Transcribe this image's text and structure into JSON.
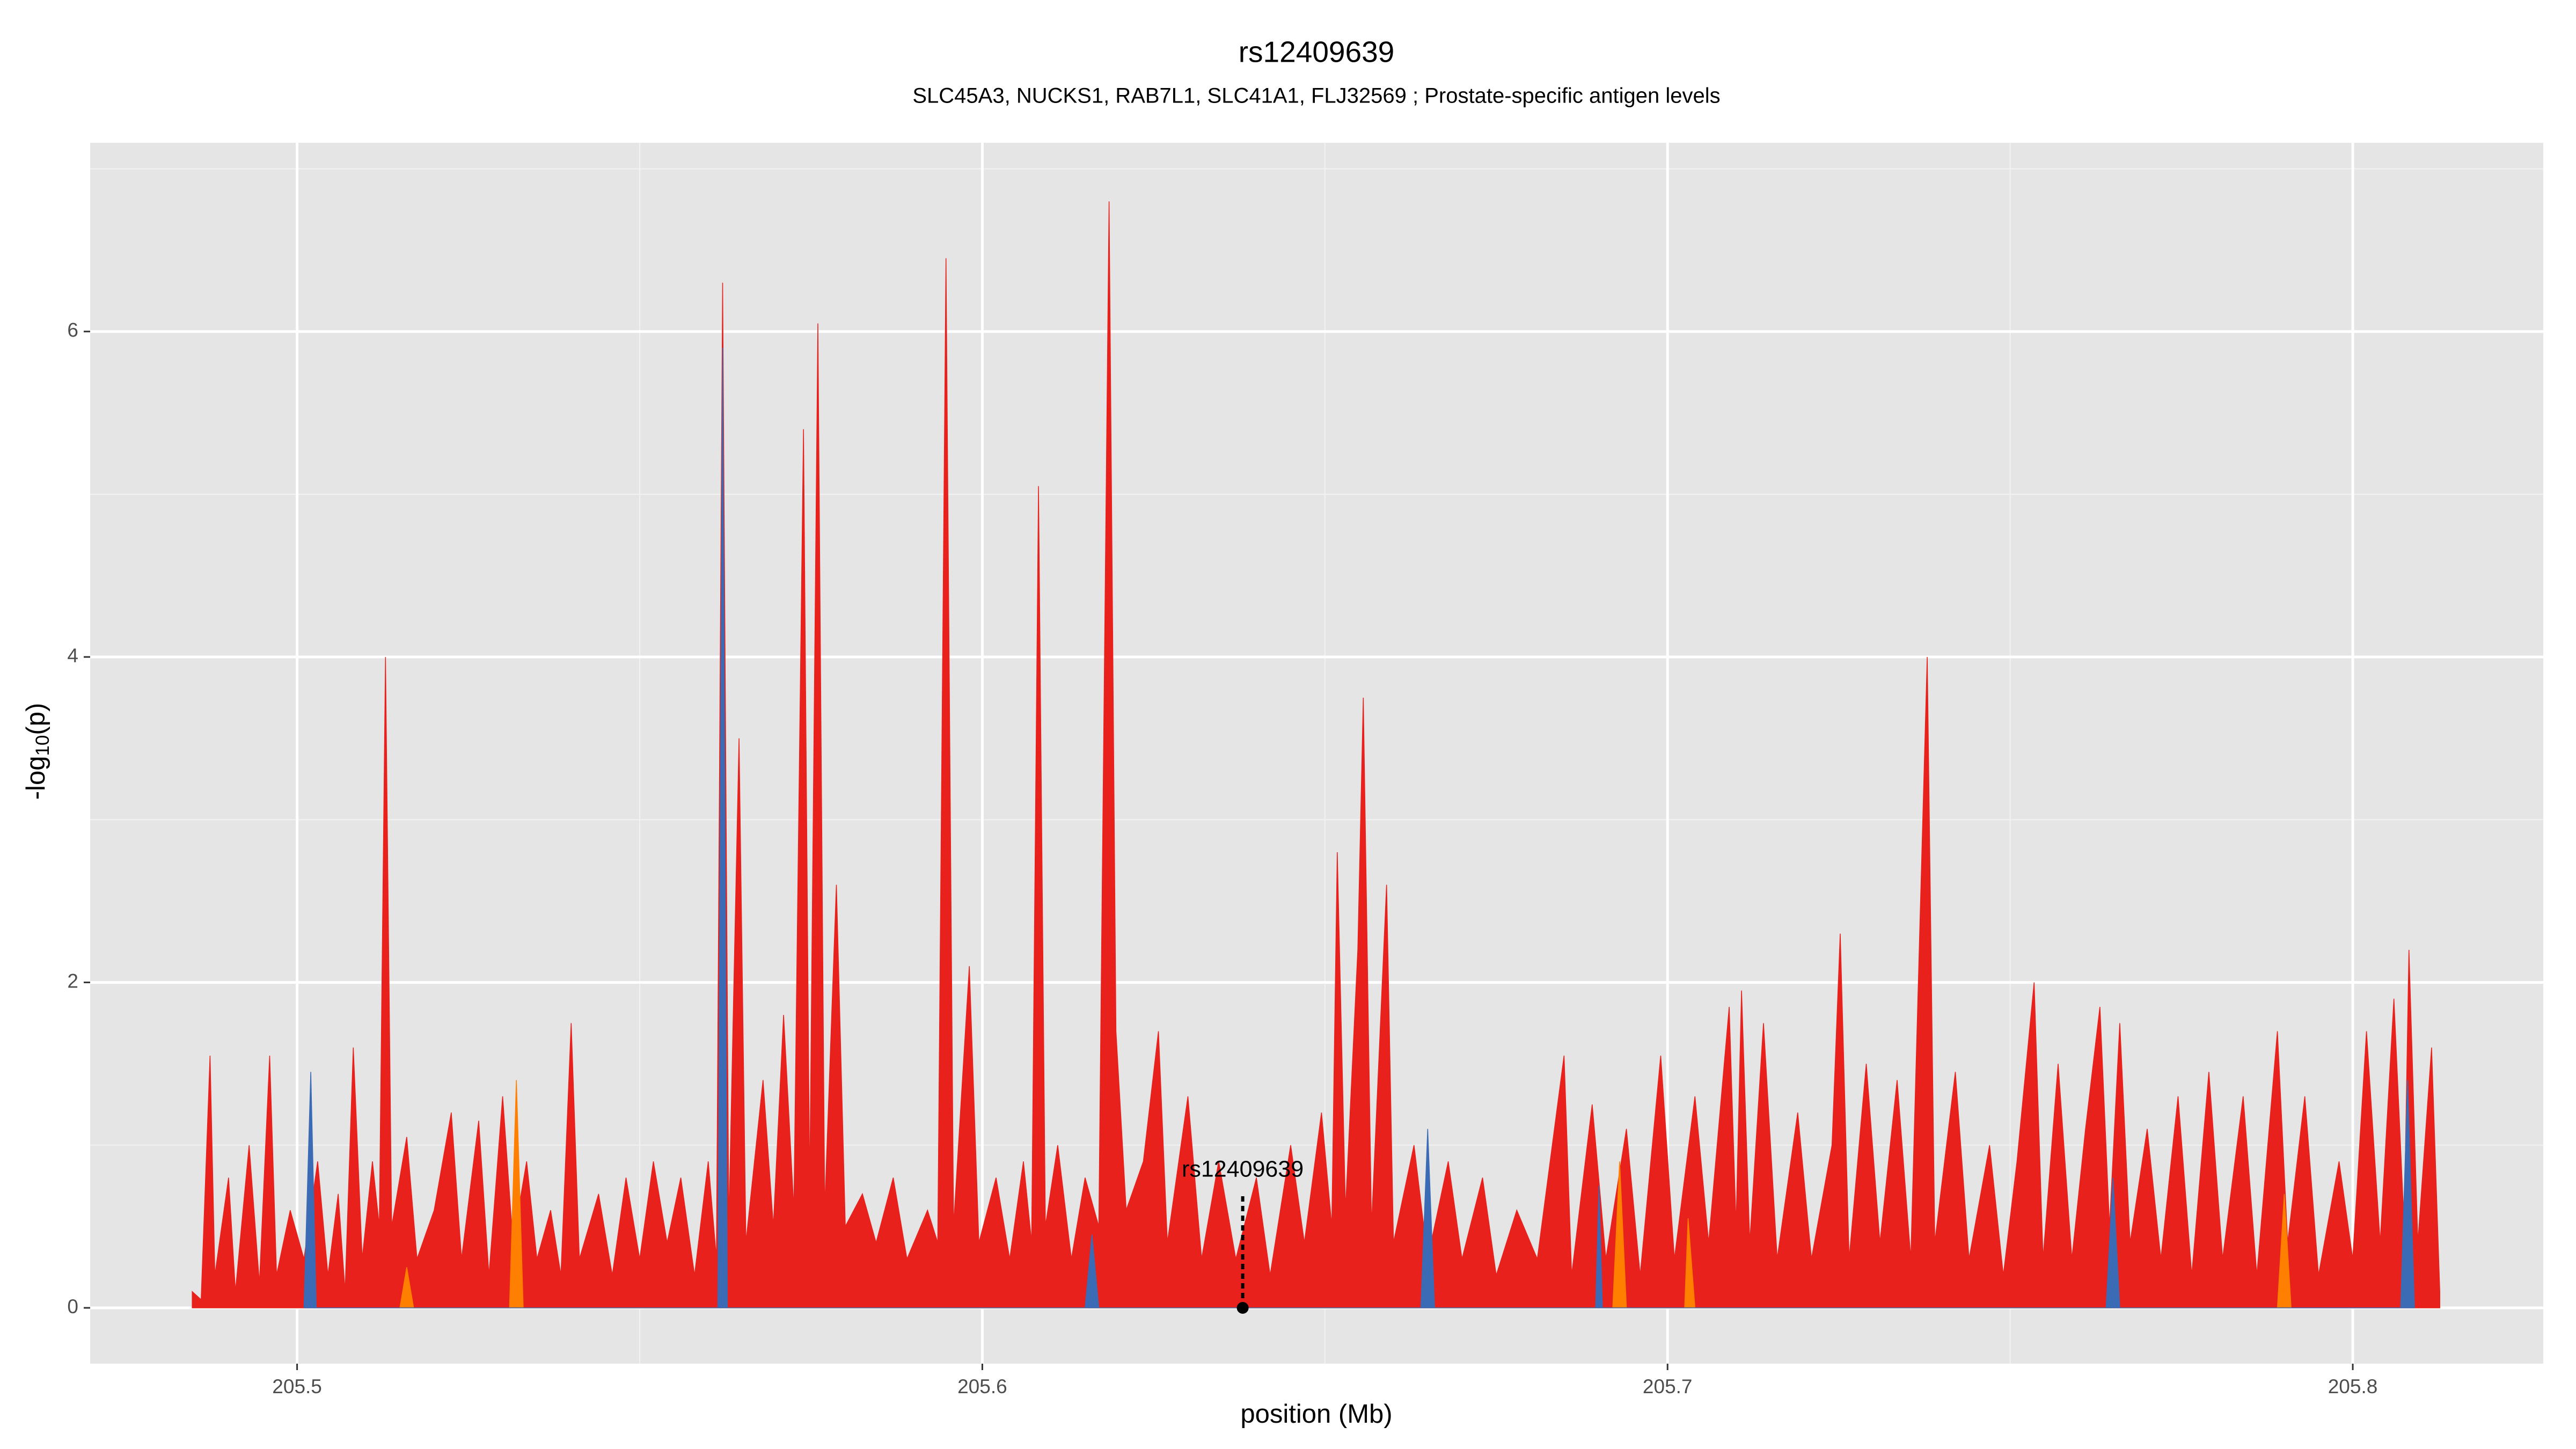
{
  "chart_data": {
    "type": "area",
    "title": "rs12409639",
    "subtitle": "SLC45A3, NUCKS1, RAB7L1, SLC41A1, FLJ32569 ; Prostate-specific antigen levels",
    "x_label": "position (Mb)",
    "y_label": "-log",
    "y_label_sub": "10",
    "y_label_tail": "(p)",
    "xlim": [
      205.4698,
      205.8278
    ],
    "ylim": [
      -0.343,
      7.16
    ],
    "xticks": [
      205.5,
      205.6,
      205.7,
      205.8
    ],
    "yticks": [
      0,
      2,
      4,
      6
    ],
    "grid": true,
    "background": "#e5e5e5",
    "annotation": {
      "text": "rs12409639",
      "x": 205.638,
      "y": 0
    },
    "series": [
      {
        "color": "#e8211d",
        "x": [
          205.4847,
          205.486,
          205.4873,
          205.488,
          205.49,
          205.491,
          205.493,
          205.4945,
          205.496,
          205.497,
          205.499,
          205.501,
          205.503,
          205.5045,
          205.506,
          205.507,
          205.5082,
          205.5095,
          205.511,
          205.512,
          205.5129,
          205.5138,
          205.516,
          205.5175,
          205.52,
          205.5225,
          205.524,
          205.5265,
          205.528,
          205.53,
          205.5315,
          205.5335,
          205.535,
          205.537,
          205.5385,
          205.54,
          205.5412,
          205.544,
          205.546,
          205.548,
          205.55,
          205.552,
          205.554,
          205.556,
          205.558,
          205.56,
          205.5612,
          205.5621,
          205.563,
          205.5645,
          205.5655,
          205.568,
          205.5695,
          205.571,
          205.5725,
          205.5739,
          205.5748,
          205.576,
          205.577,
          205.5787,
          205.58,
          205.5825,
          205.5845,
          205.587,
          205.589,
          205.592,
          205.5935,
          205.5947,
          205.5958,
          205.5981,
          205.5995,
          205.602,
          205.604,
          205.606,
          205.6072,
          205.6082,
          205.6092,
          205.611,
          205.613,
          205.615,
          205.617,
          205.6185,
          205.6195,
          205.621,
          205.6235,
          205.6257,
          205.627,
          205.63,
          205.632,
          205.6345,
          205.637,
          205.64,
          205.642,
          205.645,
          205.647,
          205.6495,
          205.651,
          205.6518,
          205.653,
          205.6548,
          205.6556,
          205.6568,
          205.659,
          205.66,
          205.663,
          205.665,
          205.668,
          205.67,
          205.673,
          205.675,
          205.678,
          205.681,
          205.6849,
          205.686,
          205.689,
          205.691,
          205.694,
          205.696,
          205.699,
          205.701,
          205.704,
          205.706,
          205.709,
          205.71,
          205.7108,
          205.712,
          205.714,
          205.716,
          205.719,
          205.721,
          205.724,
          205.7252,
          205.7265,
          205.729,
          205.731,
          205.7335,
          205.7355,
          205.7379,
          205.739,
          205.742,
          205.744,
          205.747,
          205.749,
          205.751,
          205.7535,
          205.7548,
          205.757,
          205.759,
          205.761,
          205.7631,
          205.7645,
          205.766,
          205.7675,
          205.77,
          205.772,
          205.7745,
          205.7765,
          205.779,
          205.781,
          205.784,
          205.786,
          205.789,
          205.7905,
          205.793,
          205.795,
          205.798,
          205.8,
          205.802,
          205.804,
          205.806,
          205.8075,
          205.8082,
          205.8095,
          205.8115,
          205.8127
        ],
        "values": [
          0.1,
          0.05,
          1.55,
          0.2,
          0.8,
          0.1,
          1.0,
          0.15,
          1.55,
          0.2,
          0.6,
          0.3,
          0.9,
          0.2,
          0.7,
          0.1,
          1.6,
          0.3,
          0.9,
          0.5,
          4.0,
          0.5,
          1.05,
          0.3,
          0.6,
          1.2,
          0.3,
          1.15,
          0.2,
          1.3,
          0.4,
          0.9,
          0.3,
          0.6,
          0.2,
          1.75,
          0.3,
          0.7,
          0.2,
          0.8,
          0.3,
          0.9,
          0.4,
          0.8,
          0.2,
          0.9,
          0.3,
          6.3,
          0.5,
          3.5,
          0.4,
          1.4,
          0.5,
          1.8,
          0.6,
          5.4,
          0.7,
          6.05,
          0.6,
          2.6,
          0.5,
          0.7,
          0.4,
          0.8,
          0.3,
          0.6,
          0.4,
          6.45,
          0.5,
          2.1,
          0.4,
          0.8,
          0.3,
          0.9,
          0.4,
          5.05,
          0.5,
          1.0,
          0.3,
          0.8,
          0.5,
          6.8,
          1.7,
          0.6,
          0.9,
          1.7,
          0.4,
          1.3,
          0.3,
          0.9,
          0.3,
          0.8,
          0.2,
          1.0,
          0.4,
          1.2,
          0.5,
          2.8,
          0.6,
          2.2,
          3.75,
          0.5,
          2.6,
          0.4,
          1.0,
          0.3,
          0.9,
          0.3,
          0.8,
          0.2,
          0.6,
          0.3,
          1.55,
          0.2,
          1.25,
          0.3,
          1.1,
          0.2,
          1.55,
          0.3,
          1.3,
          0.4,
          1.85,
          0.5,
          1.95,
          0.4,
          1.75,
          0.3,
          1.2,
          0.3,
          1.0,
          2.3,
          0.3,
          1.5,
          0.4,
          1.4,
          0.3,
          4.0,
          0.4,
          1.45,
          0.3,
          1.0,
          0.2,
          0.9,
          2.0,
          0.3,
          1.5,
          0.3,
          1.1,
          1.85,
          0.5,
          1.75,
          0.4,
          1.1,
          0.3,
          1.3,
          0.2,
          1.45,
          0.3,
          1.3,
          0.2,
          1.7,
          0.4,
          1.3,
          0.2,
          0.9,
          0.3,
          1.7,
          0.4,
          1.9,
          0.5,
          2.2,
          0.4,
          1.6,
          0.1
        ]
      },
      {
        "color": "#ff7f00",
        "x": [
          205.515,
          205.516,
          205.517,
          205.531,
          205.532,
          205.533,
          205.692,
          205.693,
          205.694,
          205.7025,
          205.703,
          205.704,
          205.789,
          205.79,
          205.791
        ],
        "values": [
          0,
          0.25,
          0,
          0,
          1.4,
          0,
          0,
          0.9,
          0,
          0,
          0.55,
          0,
          0,
          0.7,
          0
        ]
      },
      {
        "color": "#3b6bb5",
        "x": [
          205.501,
          205.502,
          205.5028,
          205.5614,
          205.5621,
          205.5628,
          205.615,
          205.616,
          205.617,
          205.664,
          205.665,
          205.666,
          205.6895,
          205.69,
          205.6905,
          205.764,
          205.765,
          205.766,
          205.807,
          205.808,
          205.809
        ],
        "values": [
          0,
          1.45,
          0,
          0,
          5.9,
          0,
          0,
          0.45,
          0,
          0,
          1.1,
          0,
          0,
          0.75,
          0,
          0,
          0.8,
          0,
          0,
          1.4,
          0
        ]
      }
    ]
  }
}
